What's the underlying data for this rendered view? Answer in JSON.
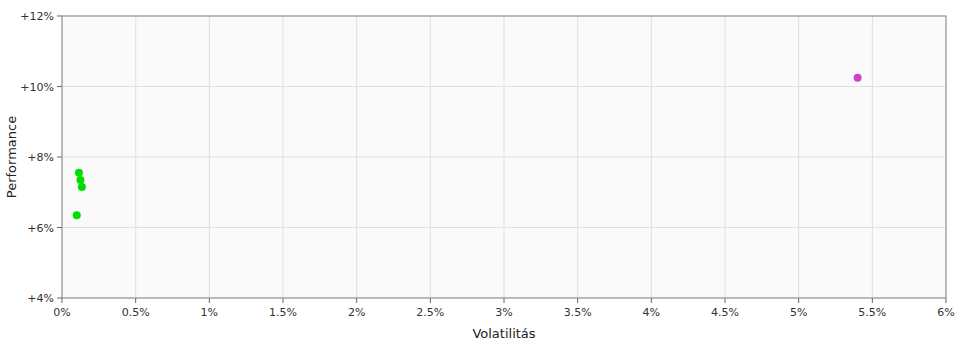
{
  "chart_data": {
    "type": "scatter",
    "xlabel": "Volatilitás",
    "ylabel": "Performance",
    "xlim": [
      0.0,
      0.06
    ],
    "ylim": [
      0.04,
      0.12
    ],
    "xticks": [
      {
        "value": 0.0,
        "label": "0%"
      },
      {
        "value": 0.005,
        "label": "0.5%"
      },
      {
        "value": 0.01,
        "label": "1%"
      },
      {
        "value": 0.015,
        "label": "1.5%"
      },
      {
        "value": 0.02,
        "label": "2%"
      },
      {
        "value": 0.025,
        "label": "2.5%"
      },
      {
        "value": 0.03,
        "label": "3%"
      },
      {
        "value": 0.035,
        "label": "3.5%"
      },
      {
        "value": 0.04,
        "label": "4%"
      },
      {
        "value": 0.045,
        "label": "4.5%"
      },
      {
        "value": 0.05,
        "label": "5%"
      },
      {
        "value": 0.055,
        "label": "5.5%"
      },
      {
        "value": 0.06,
        "label": "6%"
      }
    ],
    "yticks": [
      {
        "value": 0.04,
        "label": "+4%"
      },
      {
        "value": 0.06,
        "label": "+6%"
      },
      {
        "value": 0.08,
        "label": "+8%"
      },
      {
        "value": 0.1,
        "label": "+10%"
      },
      {
        "value": 0.12,
        "label": "+12%"
      }
    ],
    "grid": true,
    "series": [
      {
        "color": "#00dd00",
        "x": [
          0.00115,
          0.00125,
          0.00135,
          0.001
        ],
        "values": [
          0.0755,
          0.0735,
          0.0715,
          0.0635
        ]
      },
      {
        "color": "#cc44cc",
        "x": [
          0.054
        ],
        "values": [
          0.1025
        ]
      }
    ]
  }
}
